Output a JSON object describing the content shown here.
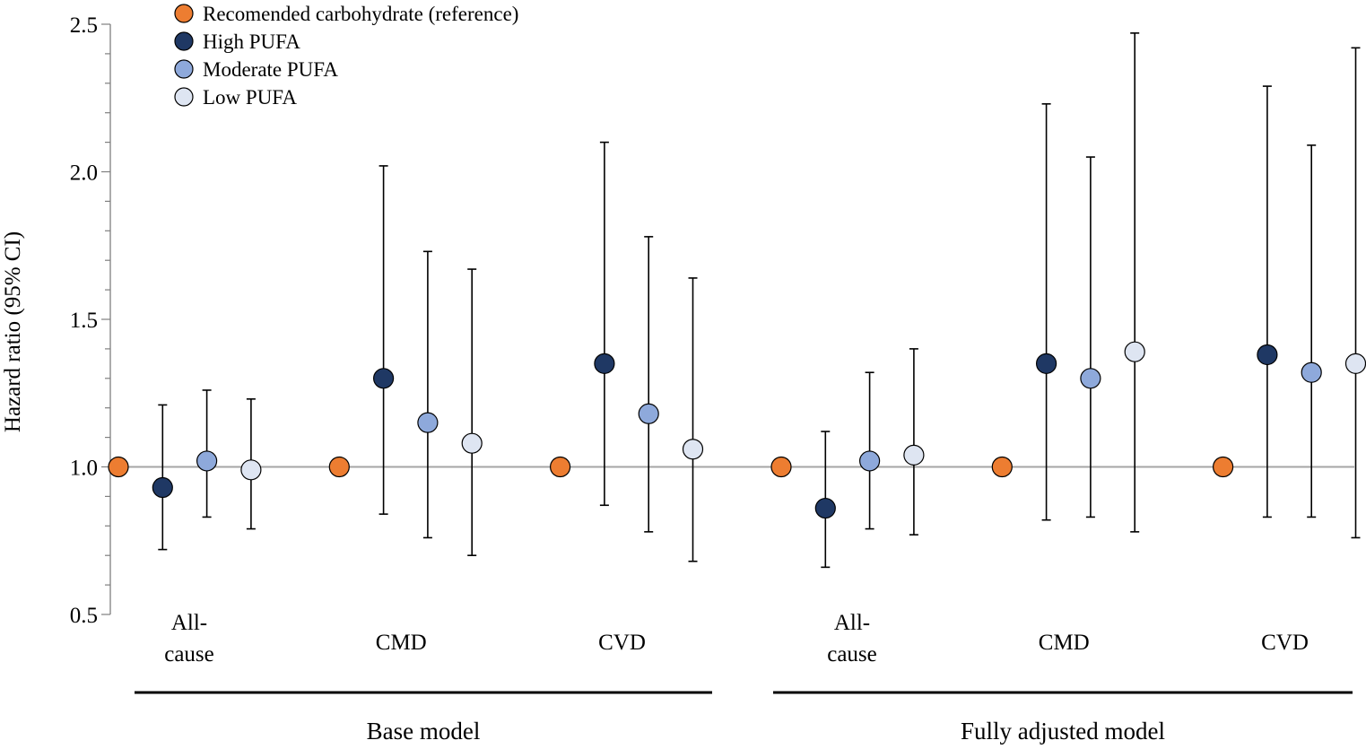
{
  "chart_data": {
    "type": "scatter",
    "subtype": "forest-plot-with-error-bars",
    "ylabel": "Hazard ratio (95% CI)",
    "ylim": [
      0.5,
      2.5
    ],
    "yticks": [
      "0.5",
      "1.0",
      "1.5",
      "2.0",
      "2.5"
    ],
    "reference_line": 1.0,
    "legend_position": "top-left",
    "series": [
      {
        "name": "Recomended carbohydrate (reference)",
        "color": "#ED7D31"
      },
      {
        "name": "High PUFA",
        "color": "#1F3864"
      },
      {
        "name": "Moderate PUFA",
        "color": "#8EA9DB"
      },
      {
        "name": "Low PUFA",
        "color": "#DEE5F2"
      }
    ],
    "groups": [
      {
        "label": "Base model",
        "categories": [
          {
            "label": [
              "All-",
              "cause"
            ],
            "points": [
              {
                "series": 0,
                "hr": 1.0
              },
              {
                "series": 1,
                "hr": 0.93,
                "lo": 0.72,
                "hi": 1.21
              },
              {
                "series": 2,
                "hr": 1.02,
                "lo": 0.83,
                "hi": 1.26
              },
              {
                "series": 3,
                "hr": 0.99,
                "lo": 0.79,
                "hi": 1.23
              }
            ]
          },
          {
            "label": [
              "CMD"
            ],
            "points": [
              {
                "series": 0,
                "hr": 1.0
              },
              {
                "series": 1,
                "hr": 1.3,
                "lo": 0.84,
                "hi": 2.02
              },
              {
                "series": 2,
                "hr": 1.15,
                "lo": 0.76,
                "hi": 1.73
              },
              {
                "series": 3,
                "hr": 1.08,
                "lo": 0.7,
                "hi": 1.67
              }
            ]
          },
          {
            "label": [
              "CVD"
            ],
            "points": [
              {
                "series": 0,
                "hr": 1.0
              },
              {
                "series": 1,
                "hr": 1.35,
                "lo": 0.87,
                "hi": 2.1
              },
              {
                "series": 2,
                "hr": 1.18,
                "lo": 0.78,
                "hi": 1.78
              },
              {
                "series": 3,
                "hr": 1.06,
                "lo": 0.68,
                "hi": 1.64
              }
            ]
          }
        ]
      },
      {
        "label": "Fully adjusted model",
        "categories": [
          {
            "label": [
              "All-",
              "cause"
            ],
            "points": [
              {
                "series": 0,
                "hr": 1.0
              },
              {
                "series": 1,
                "hr": 0.86,
                "lo": 0.66,
                "hi": 1.12
              },
              {
                "series": 2,
                "hr": 1.02,
                "lo": 0.79,
                "hi": 1.32
              },
              {
                "series": 3,
                "hr": 1.04,
                "lo": 0.77,
                "hi": 1.4
              }
            ]
          },
          {
            "label": [
              "CMD"
            ],
            "points": [
              {
                "series": 0,
                "hr": 1.0
              },
              {
                "series": 1,
                "hr": 1.35,
                "lo": 0.82,
                "hi": 2.23
              },
              {
                "series": 2,
                "hr": 1.3,
                "lo": 0.83,
                "hi": 2.05
              },
              {
                "series": 3,
                "hr": 1.39,
                "lo": 0.78,
                "hi": 2.47
              }
            ]
          },
          {
            "label": [
              "CVD"
            ],
            "points": [
              {
                "series": 0,
                "hr": 1.0
              },
              {
                "series": 1,
                "hr": 1.38,
                "lo": 0.83,
                "hi": 2.29
              },
              {
                "series": 2,
                "hr": 1.32,
                "lo": 0.83,
                "hi": 2.09
              },
              {
                "series": 3,
                "hr": 1.35,
                "lo": 0.76,
                "hi": 2.42
              }
            ]
          }
        ]
      }
    ]
  }
}
